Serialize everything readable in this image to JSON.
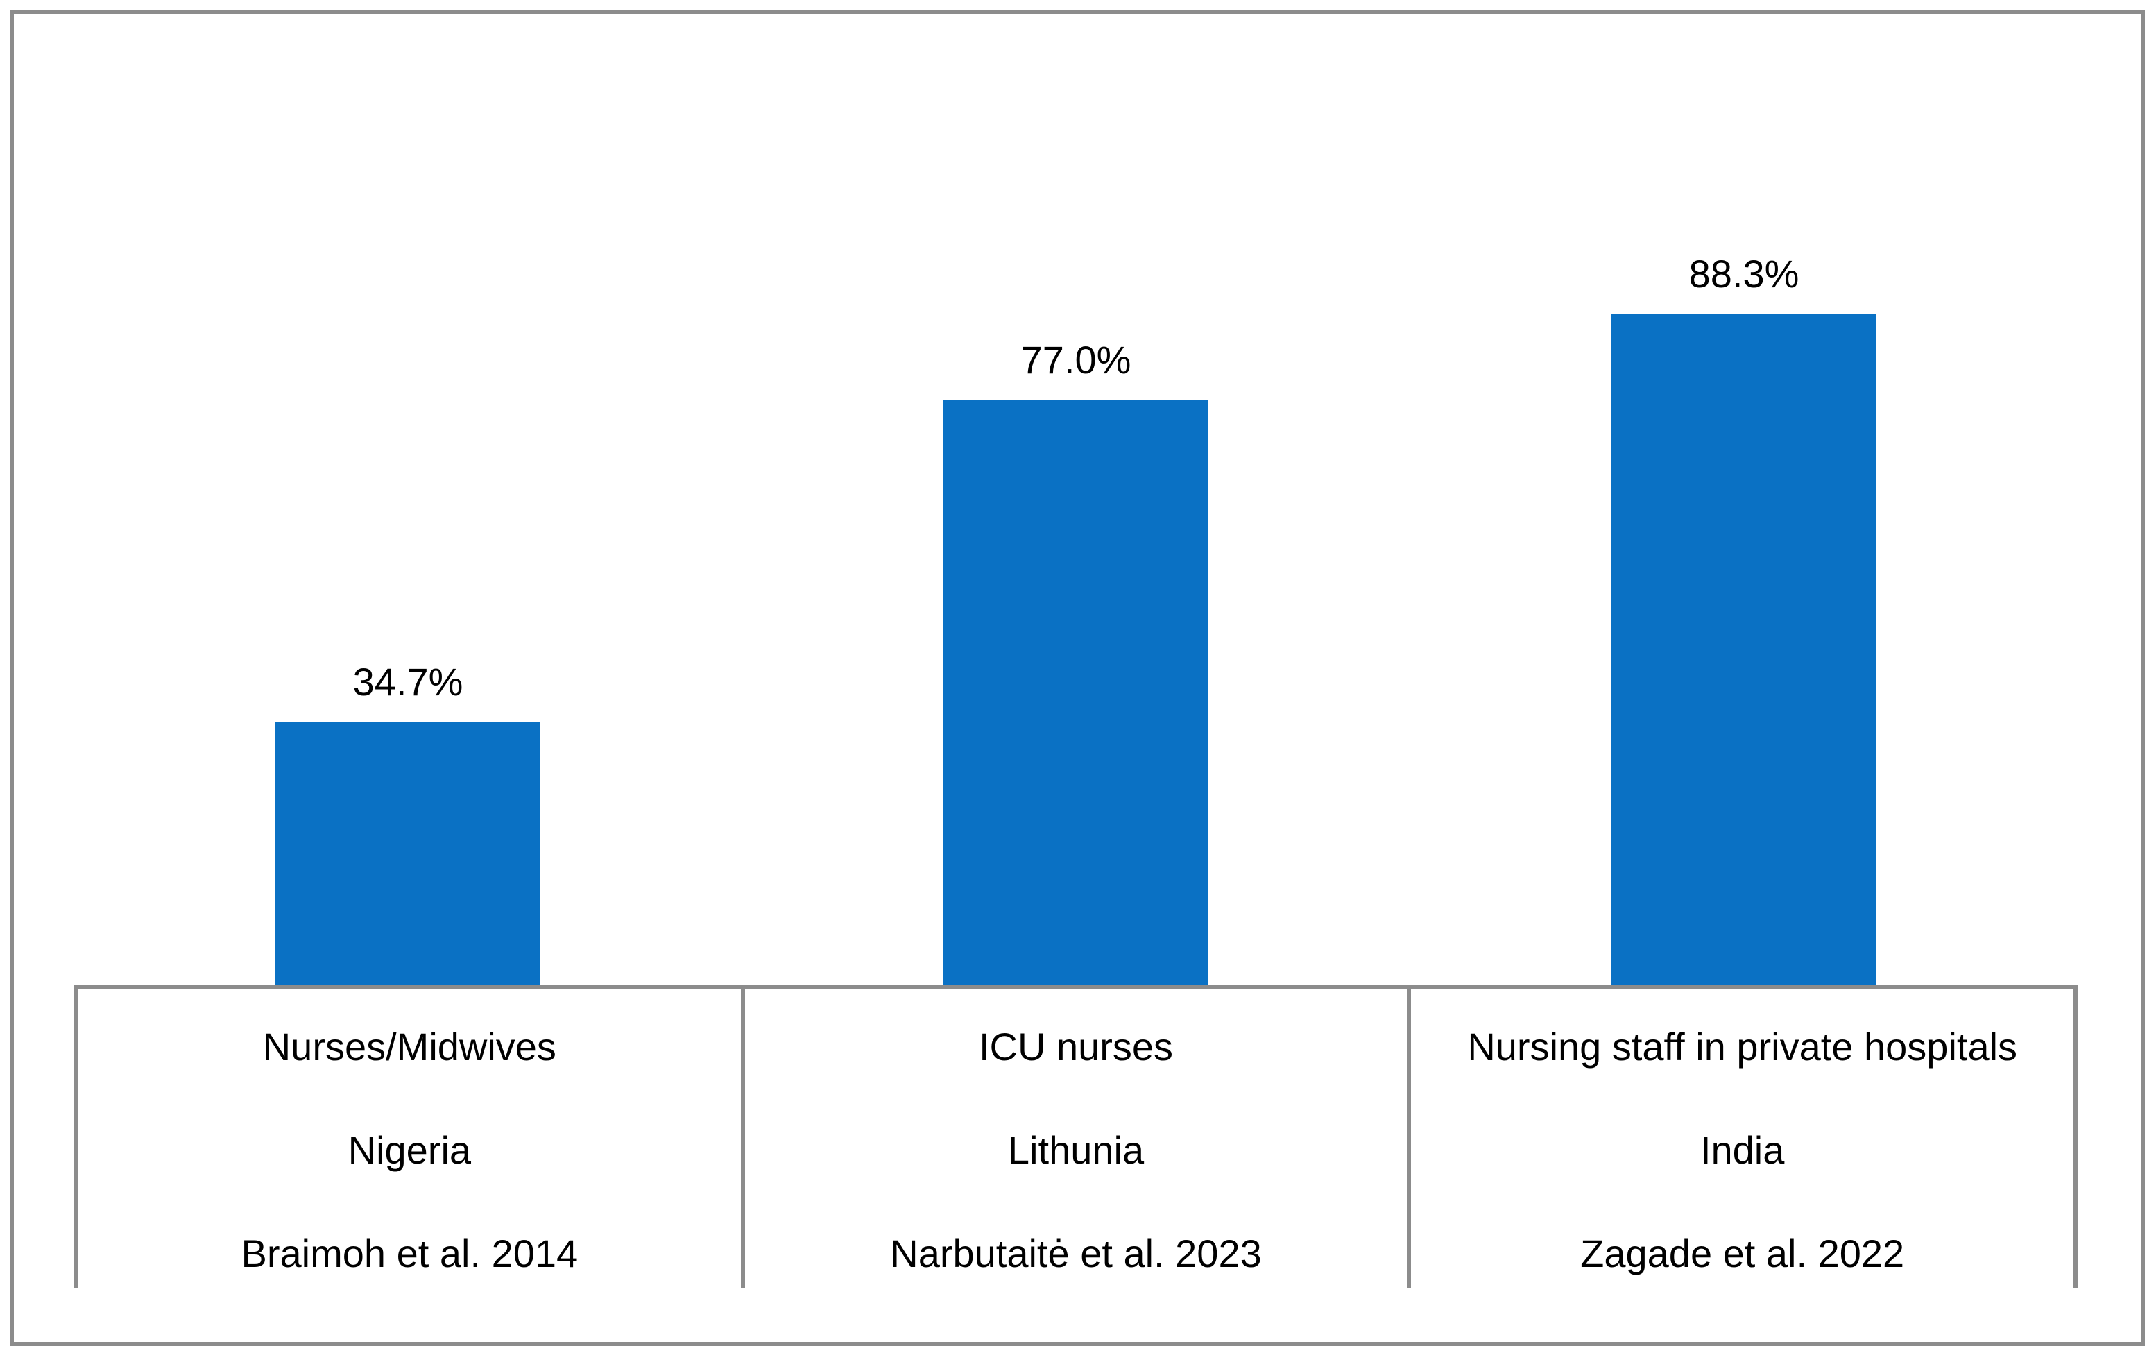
{
  "page": {
    "background_color": "#ffffff",
    "frame_border_color": "#8c8c8c"
  },
  "chart_data": {
    "type": "bar",
    "title": "",
    "xlabel": "",
    "ylabel": "",
    "unit": "%",
    "ylim": [
      0,
      100
    ],
    "y_axis_visible": false,
    "gridlines": false,
    "legend": false,
    "bar_color": "#0a71c4",
    "table_line_color": "#8c8c8c",
    "text_color": "#000000",
    "values": [
      34.7,
      77.0,
      88.3
    ],
    "value_labels": [
      "34.7%",
      "77.0%",
      "88.3%"
    ],
    "categories": [
      {
        "label": "Nurses/Midwives",
        "country": "Nigeria",
        "source": "Braimoh et al. 2014"
      },
      {
        "label": "ICU nurses",
        "country": "Lithunia",
        "source": "Narbutaitė et al. 2023"
      },
      {
        "label": "Nursing staff in private hospitals",
        "country": "India",
        "source": "Zagade et al. 2022"
      }
    ]
  }
}
